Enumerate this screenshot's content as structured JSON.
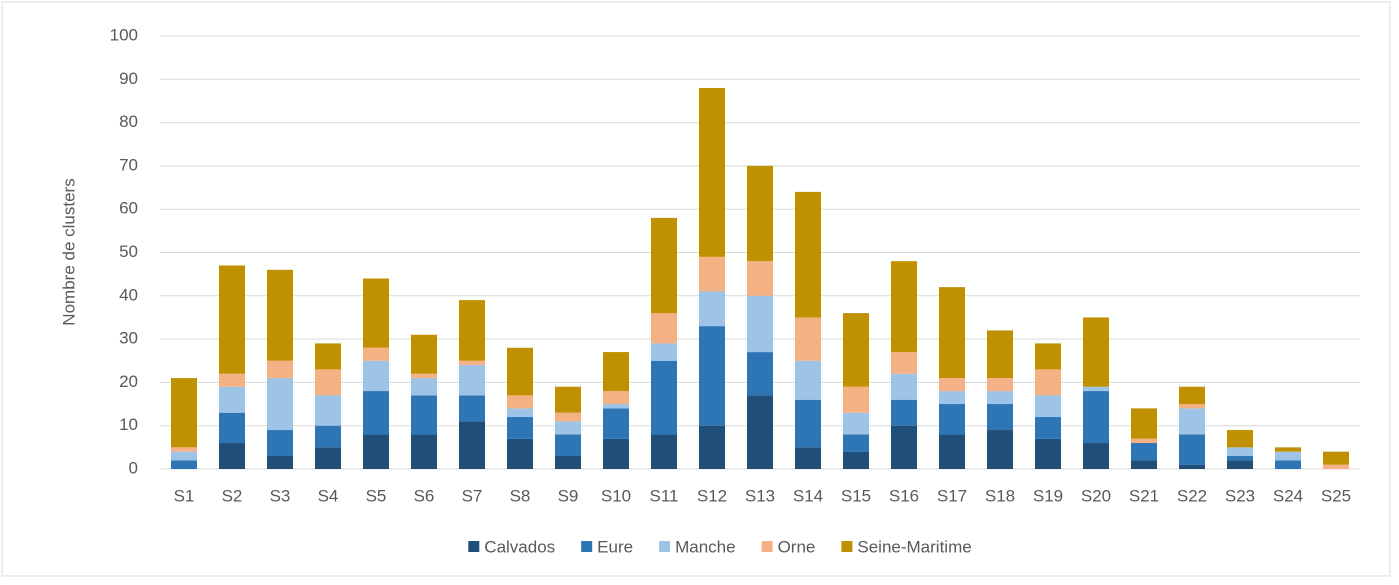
{
  "chart_data": {
    "type": "stacked_bar",
    "y_label": "Nombre de clusters",
    "categories": [
      "S1",
      "S2",
      "S3",
      "S4",
      "S5",
      "S6",
      "S7",
      "S8",
      "S9",
      "S10",
      "S11",
      "S12",
      "S13",
      "S14",
      "S15",
      "S16",
      "S17",
      "S18",
      "S19",
      "S20",
      "S21",
      "S22",
      "S23",
      "S24",
      "S25"
    ],
    "series": [
      {
        "name": "Calvados",
        "color": "#1f4e79",
        "values": [
          0,
          6,
          3,
          5,
          8,
          8,
          11,
          7,
          3,
          7,
          8,
          10,
          17,
          5,
          4,
          10,
          8,
          9,
          7,
          6,
          2,
          1,
          2,
          0,
          0
        ]
      },
      {
        "name": "Eure",
        "color": "#2e75b6",
        "values": [
          2,
          7,
          6,
          5,
          10,
          9,
          6,
          5,
          5,
          7,
          17,
          23,
          10,
          11,
          4,
          6,
          7,
          6,
          5,
          12,
          4,
          7,
          1,
          2,
          0
        ]
      },
      {
        "name": "Manche",
        "color": "#9dc3e6",
        "values": [
          2,
          6,
          12,
          7,
          7,
          4,
          7,
          2,
          3,
          1,
          4,
          8,
          13,
          9,
          5,
          6,
          3,
          3,
          5,
          1,
          0,
          6,
          2,
          2,
          0
        ]
      },
      {
        "name": "Orne",
        "color": "#f4b183",
        "values": [
          1,
          3,
          4,
          6,
          3,
          1,
          1,
          3,
          2,
          3,
          7,
          8,
          8,
          10,
          6,
          5,
          3,
          3,
          6,
          0,
          1,
          1,
          0,
          0,
          1
        ]
      },
      {
        "name": "Seine-Maritime",
        "color": "#bf9000",
        "values": [
          16,
          25,
          21,
          6,
          16,
          9,
          14,
          11,
          6,
          9,
          22,
          39,
          22,
          29,
          17,
          21,
          21,
          11,
          6,
          16,
          7,
          4,
          4,
          1,
          3
        ]
      }
    ],
    "ylim": [
      0,
      100
    ],
    "yticks": [
      0,
      10,
      20,
      30,
      40,
      50,
      60,
      70,
      80,
      90,
      100
    ],
    "grid": true,
    "legend": "bottom"
  }
}
